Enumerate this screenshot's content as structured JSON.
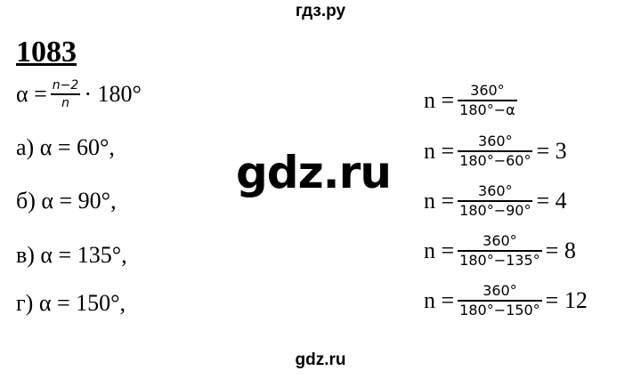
{
  "header": "гдз.ру",
  "footer": "gdz.ru",
  "watermark": "gdz.ru",
  "problem_number": "1083",
  "formula": {
    "lhs": "α =",
    "num": "n−2",
    "den": "n",
    "rhs": "· 180°"
  },
  "left_rows": [
    {
      "label": "а) α = 60°,"
    },
    {
      "label": "б) α = 90°,"
    },
    {
      "label": "в) α = 135°,"
    },
    {
      "label": "г) α = 150°,"
    }
  ],
  "right_rows": [
    {
      "lhs": "n =",
      "num": "360°",
      "den": "180°−α",
      "result": ""
    },
    {
      "lhs": "n =",
      "num": "360°",
      "den": "180°−60°",
      "result": "= 3"
    },
    {
      "lhs": "n =",
      "num": "360°",
      "den": "180°−90°",
      "result": "= 4"
    },
    {
      "lhs": "n =",
      "num": "360°",
      "den": "180°−135°",
      "result": "= 8"
    },
    {
      "lhs": "n =",
      "num": "360°",
      "den": "180°−150°",
      "result": "= 12"
    }
  ]
}
